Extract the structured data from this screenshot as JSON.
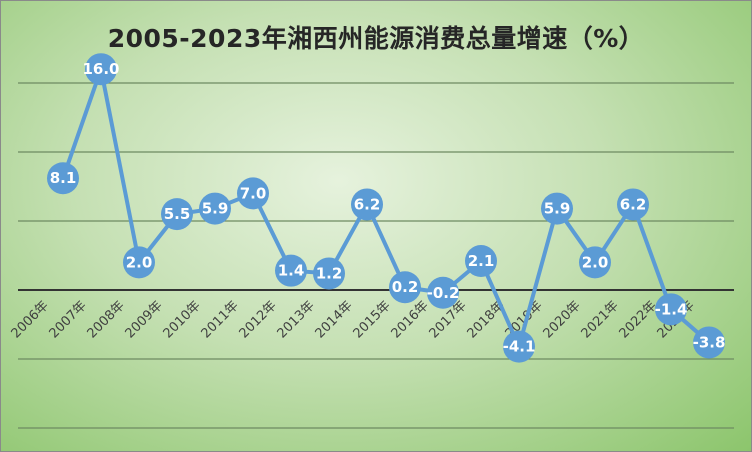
{
  "chart_data": {
    "type": "line",
    "title": "2005-2023年湘西州能源消费总量增速（%）",
    "xlabel": "",
    "ylabel": "",
    "categories": [
      "2006年",
      "2007年",
      "2008年",
      "2009年",
      "2010年",
      "2011年",
      "2012年",
      "2013年",
      "2014年",
      "2015年",
      "2016年",
      "2017年",
      "2018年",
      "2019年",
      "2020年",
      "2021年",
      "2022年",
      "2023年"
    ],
    "series": [
      {
        "values": [
          8.1,
          16.0,
          2.0,
          5.5,
          5.9,
          7.0,
          1.4,
          1.2,
          6.2,
          0.2,
          -0.2,
          2.1,
          -4.1,
          5.9,
          2.0,
          6.2,
          -1.4,
          -3.8
        ]
      }
    ],
    "data_labels": [
      "8.1",
      "16.0",
      "2.0",
      "5.5",
      "5.9",
      "7.0",
      "1.4",
      "1.2",
      "6.2",
      "0.2",
      "-0.2",
      "2.1",
      "-4.1",
      "5.9",
      "2.0",
      "6.2",
      "-1.4",
      "-3.8"
    ],
    "ylim": [
      -10,
      20
    ],
    "gridlines": [
      -10,
      -5,
      0,
      5,
      10,
      15,
      20
    ],
    "grid": true,
    "legend": "none",
    "colors": {
      "line": "#5b9bd5",
      "gridline": "#6e8a62",
      "zero_line": "#333333",
      "label_text": "#ffffff"
    }
  }
}
